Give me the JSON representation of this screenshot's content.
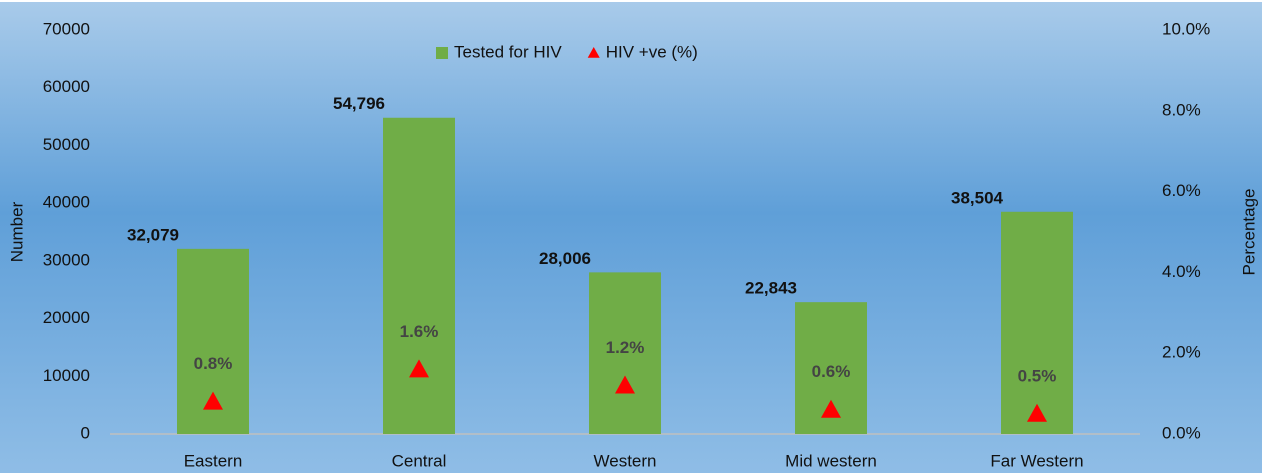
{
  "chart_data": {
    "type": "bar",
    "y_axis_label": "Number",
    "y2_axis_label": "Percentage",
    "categories": [
      "Eastern",
      "Central",
      "Western",
      "Mid western",
      "Far Western"
    ],
    "series": [
      {
        "name": "Tested for HIV",
        "color": "#70ad47",
        "values": [
          32079,
          54796,
          28006,
          22843,
          38504
        ],
        "value_labels": [
          "32,079",
          "54,796",
          "28,006",
          "22,843",
          "38,504"
        ]
      },
      {
        "name": "HIV +ve (%)",
        "color": "#ff0000",
        "axis": "y2",
        "values": [
          0.8,
          1.6,
          1.2,
          0.6,
          0.5
        ],
        "value_labels": [
          "0.8%",
          "1.6%",
          "1.2%",
          "0.6%",
          "0.5%"
        ]
      }
    ],
    "ylim": [
      0,
      70000
    ],
    "yticks": [
      0,
      10000,
      20000,
      30000,
      40000,
      50000,
      60000,
      70000
    ],
    "y2lim": [
      0,
      10
    ],
    "y2ticks": [
      {
        "value": 0,
        "label": "0.0%"
      },
      {
        "value": 2,
        "label": "2.0%"
      },
      {
        "value": 4,
        "label": "4.0%"
      },
      {
        "value": 6,
        "label": "6.0%"
      },
      {
        "value": 8,
        "label": "8.0%"
      },
      {
        "value": 10,
        "label": "10.0%"
      }
    ],
    "legend": "top"
  }
}
